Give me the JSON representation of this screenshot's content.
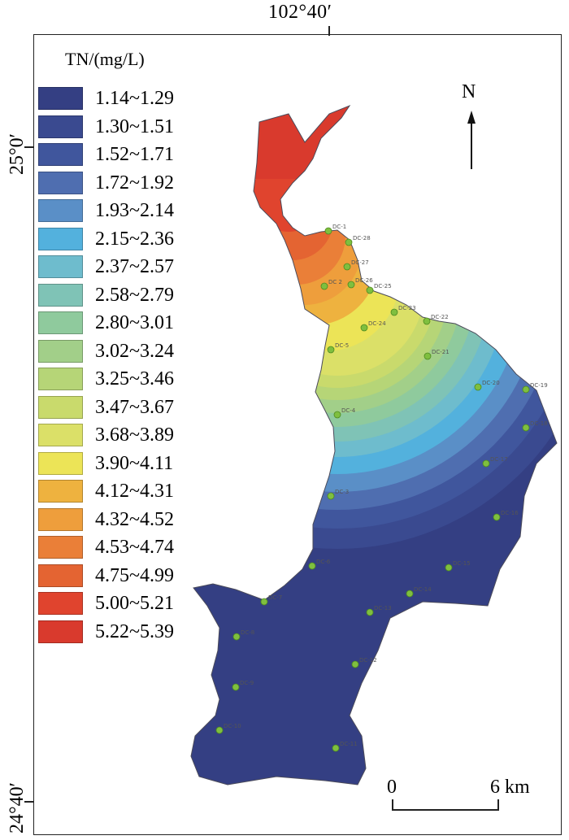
{
  "coordinates": {
    "top_longitude": "102°40′",
    "lat_upper": "25°0′",
    "lat_lower": "24°40′"
  },
  "legend": {
    "title": "TN/(mg/L)",
    "classes": [
      {
        "range": "1.14~1.29",
        "color": "#343f83"
      },
      {
        "range": "1.30~1.51",
        "color": "#3a4a90"
      },
      {
        "range": "1.52~1.71",
        "color": "#40569d"
      },
      {
        "range": "1.72~1.92",
        "color": "#4f6eb0"
      },
      {
        "range": "1.93~2.14",
        "color": "#5a8fc7"
      },
      {
        "range": "2.15~2.36",
        "color": "#53b1dd"
      },
      {
        "range": "2.37~2.57",
        "color": "#6ebccd"
      },
      {
        "range": "2.58~2.79",
        "color": "#7fc3b6"
      },
      {
        "range": "2.80~3.01",
        "color": "#8fca9d"
      },
      {
        "range": "3.02~3.24",
        "color": "#a2cf89"
      },
      {
        "range": "3.25~3.46",
        "color": "#b6d577"
      },
      {
        "range": "3.47~3.67",
        "color": "#c9da6c"
      },
      {
        "range": "3.68~3.89",
        "color": "#dbe068"
      },
      {
        "range": "3.90~4.11",
        "color": "#ece457"
      },
      {
        "range": "4.12~4.31",
        "color": "#eeb23f"
      },
      {
        "range": "4.32~4.52",
        "color": "#ee9e3c"
      },
      {
        "range": "4.53~4.74",
        "color": "#ea7f38"
      },
      {
        "range": "4.75~4.99",
        "color": "#e46432"
      },
      {
        "range": "5.00~5.21",
        "color": "#e0442e"
      },
      {
        "range": "5.22~5.39",
        "color": "#d93a2d"
      }
    ]
  },
  "north_arrow": {
    "letter": "N"
  },
  "scale_bar": {
    "start": "0",
    "end": "6 km"
  },
  "sites": [
    "DC-1",
    "DC-28",
    "DC-27",
    "DC 2",
    "DC-26",
    "DC-25",
    "DC-23",
    "DC-24",
    "DC-22",
    "DC-5",
    "DC-21",
    "DC-20",
    "DC-19",
    "DC-4",
    "DC-18",
    "DC-17",
    "DC-3",
    "DC-16",
    "DC-6",
    "DC-15",
    "DC-14",
    "DC-7",
    "DC-13",
    "DC-8",
    "DC-12",
    "DC-9",
    "DC-10",
    "DC-11"
  ]
}
